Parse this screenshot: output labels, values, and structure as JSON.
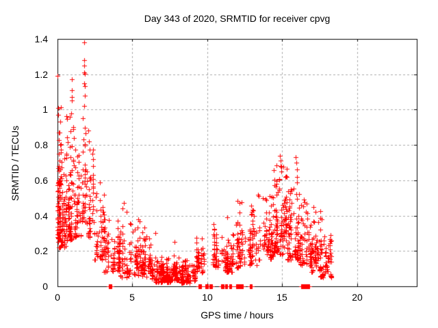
{
  "chart_data": {
    "type": "scatter",
    "title": "Day 343 of 2020, SRMTID for receiver cpvg",
    "xlabel": "GPS time / hours",
    "ylabel": "SRMTID / TECUs",
    "legend": "none",
    "grid": true,
    "axes": {
      "x": {
        "min": 0,
        "max": 24,
        "ticks": [
          {
            "v": 0,
            "label": "0"
          },
          {
            "v": 5,
            "label": "5"
          },
          {
            "v": 10,
            "label": "10"
          },
          {
            "v": 15,
            "label": "15"
          },
          {
            "v": 20,
            "label": "20"
          }
        ]
      },
      "y": {
        "min": 0,
        "max": 1.4,
        "ticks": [
          {
            "v": 0,
            "label": "0"
          },
          {
            "v": 0.2,
            "label": "0.2"
          },
          {
            "v": 0.4,
            "label": "0.4"
          },
          {
            "v": 0.6,
            "label": "0.6"
          },
          {
            "v": 0.8,
            "label": "0.8"
          },
          {
            "v": 1,
            "label": "1"
          },
          {
            "v": 1.2,
            "label": "1.2"
          },
          {
            "v": 1.4,
            "label": "1.4"
          }
        ]
      }
    },
    "marker": {
      "shape": "plus",
      "size": 7,
      "color": "#ff0000"
    },
    "colors": {
      "background": "#ffffff",
      "axis": "#000000",
      "grid": "#a8a8a8"
    },
    "seed": 343,
    "cluster_fields": [
      "x_start",
      "x_end",
      "y_min",
      "y_max",
      "count",
      "low_bias"
    ],
    "clusters": [
      [
        0.0,
        0.25,
        0.25,
        1.02,
        75,
        1.6
      ],
      [
        0.05,
        0.6,
        0.22,
        0.8,
        80,
        1.5
      ],
      [
        0.6,
        1.15,
        0.25,
        0.97,
        85,
        1.5
      ],
      [
        1.15,
        1.6,
        0.28,
        0.8,
        45,
        1.4
      ],
      [
        1.6,
        1.95,
        0.35,
        1.28,
        40,
        1.8
      ],
      [
        1.95,
        2.45,
        0.28,
        0.9,
        45,
        1.8
      ],
      [
        2.35,
        3.15,
        0.15,
        0.62,
        65,
        1.6
      ],
      [
        3.05,
        4.05,
        0.08,
        0.4,
        70,
        1.7
      ],
      [
        4.05,
        5.05,
        0.05,
        0.36,
        80,
        1.5
      ],
      [
        5.05,
        5.65,
        0.06,
        0.38,
        55,
        1.5
      ],
      [
        5.65,
        6.25,
        0.05,
        0.34,
        60,
        1.4
      ],
      [
        6.25,
        7.6,
        0.02,
        0.17,
        160,
        1.3
      ],
      [
        7.4,
        8.15,
        0.03,
        0.23,
        70,
        1.5
      ],
      [
        8.1,
        9.25,
        0.02,
        0.15,
        115,
        1.3
      ],
      [
        9.2,
        9.8,
        0.07,
        0.28,
        45,
        1.4
      ],
      [
        10.25,
        10.75,
        0.1,
        0.36,
        40,
        1.4
      ],
      [
        10.95,
        11.4,
        0.08,
        0.43,
        45,
        1.5
      ],
      [
        11.4,
        11.75,
        0.08,
        0.31,
        32,
        1.4
      ],
      [
        11.9,
        12.55,
        0.1,
        0.5,
        55,
        1.5
      ],
      [
        12.7,
        13.4,
        0.12,
        0.46,
        55,
        1.4
      ],
      [
        13.4,
        14.45,
        0.15,
        0.53,
        90,
        1.4
      ],
      [
        14.45,
        15.3,
        0.18,
        0.7,
        115,
        1.5
      ],
      [
        15.3,
        16.2,
        0.15,
        0.62,
        95,
        1.5
      ],
      [
        16.2,
        16.85,
        0.12,
        0.5,
        60,
        1.4
      ],
      [
        16.85,
        17.65,
        0.08,
        0.43,
        90,
        1.5
      ],
      [
        17.55,
        18.3,
        0.05,
        0.3,
        70,
        1.5
      ]
    ],
    "outliers": [
      [
        0.02,
        1.19
      ],
      [
        0.04,
        1.01
      ],
      [
        0.83,
        0.96
      ],
      [
        0.95,
        1.17
      ],
      [
        0.96,
        1.11
      ],
      [
        0.95,
        1.07
      ],
      [
        0.98,
        1.05
      ],
      [
        0.9,
        0.98
      ],
      [
        1.79,
        1.38
      ],
      [
        1.8,
        1.28
      ],
      [
        1.79,
        1.25
      ],
      [
        1.8,
        1.21
      ],
      [
        1.78,
        1.15
      ],
      [
        1.82,
        1.08
      ],
      [
        1.8,
        1.02
      ],
      [
        2.05,
        0.88
      ],
      [
        2.12,
        0.82
      ],
      [
        2.35,
        0.75
      ],
      [
        4.35,
        0.44
      ],
      [
        4.45,
        0.47
      ],
      [
        4.6,
        0.42
      ],
      [
        5.4,
        0.38
      ],
      [
        6.55,
        0.3
      ],
      [
        7.8,
        0.25
      ],
      [
        9.69,
        0.215
      ],
      [
        13.0,
        0.42
      ],
      [
        13.1,
        0.4
      ],
      [
        13.05,
        0.37
      ],
      [
        14.85,
        0.74
      ],
      [
        14.88,
        0.71
      ],
      [
        14.92,
        0.68
      ],
      [
        14.95,
        0.65
      ],
      [
        15.9,
        0.73
      ],
      [
        15.94,
        0.7
      ],
      [
        15.98,
        0.66
      ],
      [
        16.02,
        0.62
      ],
      [
        17.1,
        0.45
      ],
      [
        17.25,
        0.42
      ]
    ],
    "zero_runs": [
      [
        3.45,
        3.62
      ],
      [
        9.4,
        9.62
      ],
      [
        9.86,
        10.08
      ],
      [
        10.17,
        10.36
      ],
      [
        10.94,
        11.1
      ],
      [
        11.22,
        11.34
      ],
      [
        11.47,
        11.6
      ],
      [
        11.95,
        12.4
      ],
      [
        12.86,
        12.98
      ],
      [
        16.27,
        16.82
      ]
    ]
  }
}
